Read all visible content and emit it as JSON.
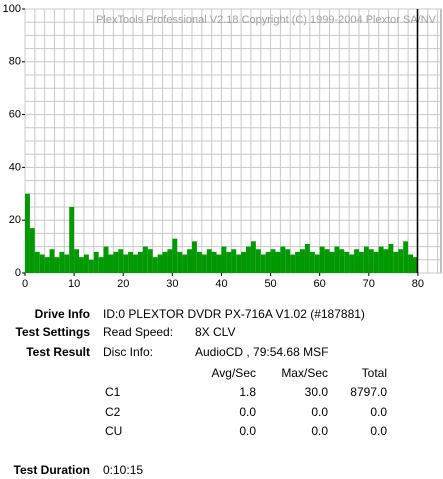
{
  "chart_data": {
    "type": "bar",
    "watermark": "PlexTools Professional V2.18 Copyright (C) 1999-2004 Plextor SA/NV",
    "xlim": [
      0,
      84.7
    ],
    "ylim": [
      0,
      100
    ],
    "xticks": [
      0,
      10,
      20,
      30,
      40,
      50,
      60,
      70,
      80
    ],
    "yticks": [
      0,
      20,
      40,
      60,
      80,
      100
    ],
    "xgrid": [
      0,
      2,
      4,
      6,
      8,
      10,
      12,
      14,
      16,
      18,
      20,
      22,
      24,
      26,
      28,
      30,
      32,
      34,
      36,
      38,
      40,
      42,
      44,
      46,
      48,
      50,
      52,
      54,
      56,
      58,
      60,
      62,
      64,
      66,
      68,
      70,
      72,
      74,
      76,
      78,
      80,
      82,
      84
    ],
    "ygrid": [
      0,
      5,
      10,
      15,
      20,
      25,
      30,
      35,
      40,
      45,
      50,
      55,
      60,
      65,
      70,
      75,
      80,
      85,
      90,
      95,
      100
    ],
    "grid": true,
    "color": "#009900",
    "end_marker": 79.91,
    "x": [
      0,
      1,
      2,
      3,
      4,
      5,
      6,
      7,
      8,
      9,
      10,
      11,
      12,
      13,
      14,
      15,
      16,
      17,
      18,
      19,
      20,
      21,
      22,
      23,
      24,
      25,
      26,
      27,
      28,
      29,
      30,
      31,
      32,
      33,
      34,
      35,
      36,
      37,
      38,
      39,
      40,
      41,
      42,
      43,
      44,
      45,
      46,
      47,
      48,
      49,
      50,
      51,
      52,
      53,
      54,
      55,
      56,
      57,
      58,
      59,
      60,
      61,
      62,
      63,
      64,
      65,
      66,
      67,
      68,
      69,
      70,
      71,
      72,
      73,
      74,
      75,
      76,
      77,
      78,
      79
    ],
    "values": [
      30,
      17,
      8,
      7,
      6,
      9,
      6,
      8,
      7,
      25,
      9,
      6,
      7,
      5,
      8,
      6,
      10,
      7,
      8,
      9,
      7,
      8,
      7,
      8,
      10,
      9,
      6,
      7,
      8,
      9,
      13,
      8,
      7,
      9,
      12,
      8,
      7,
      9,
      8,
      7,
      10,
      8,
      9,
      7,
      8,
      10,
      12,
      9,
      7,
      8,
      9,
      8,
      10,
      9,
      7,
      8,
      9,
      11,
      8,
      7,
      10,
      9,
      8,
      10,
      9,
      8,
      7,
      9,
      8,
      10,
      9,
      8,
      10,
      9,
      11,
      8,
      9,
      12,
      7,
      6
    ]
  },
  "info": {
    "drive_info": {
      "label": "Drive Info",
      "value": "ID:0 PLEXTOR DVDR PX-716A V1.02 (#187881)"
    },
    "test_settings": {
      "label": "Test Settings",
      "key": "Read Speed:",
      "value": "8X CLV"
    },
    "test_result": {
      "label": "Test Result",
      "key": "Disc Info:",
      "value": "AudioCD , 79:54.68 MSF"
    },
    "table": {
      "headers": [
        "Avg/Sec",
        "Max/Sec",
        "Total"
      ],
      "rows": [
        [
          "C1",
          "1.8",
          "30.0",
          "8797.0"
        ],
        [
          "C2",
          "0.0",
          "0.0",
          "0.0"
        ],
        [
          "CU",
          "0.0",
          "0.0",
          "0.0"
        ]
      ]
    },
    "test_duration": {
      "label": "Test Duration",
      "value": "0:10:15"
    }
  }
}
